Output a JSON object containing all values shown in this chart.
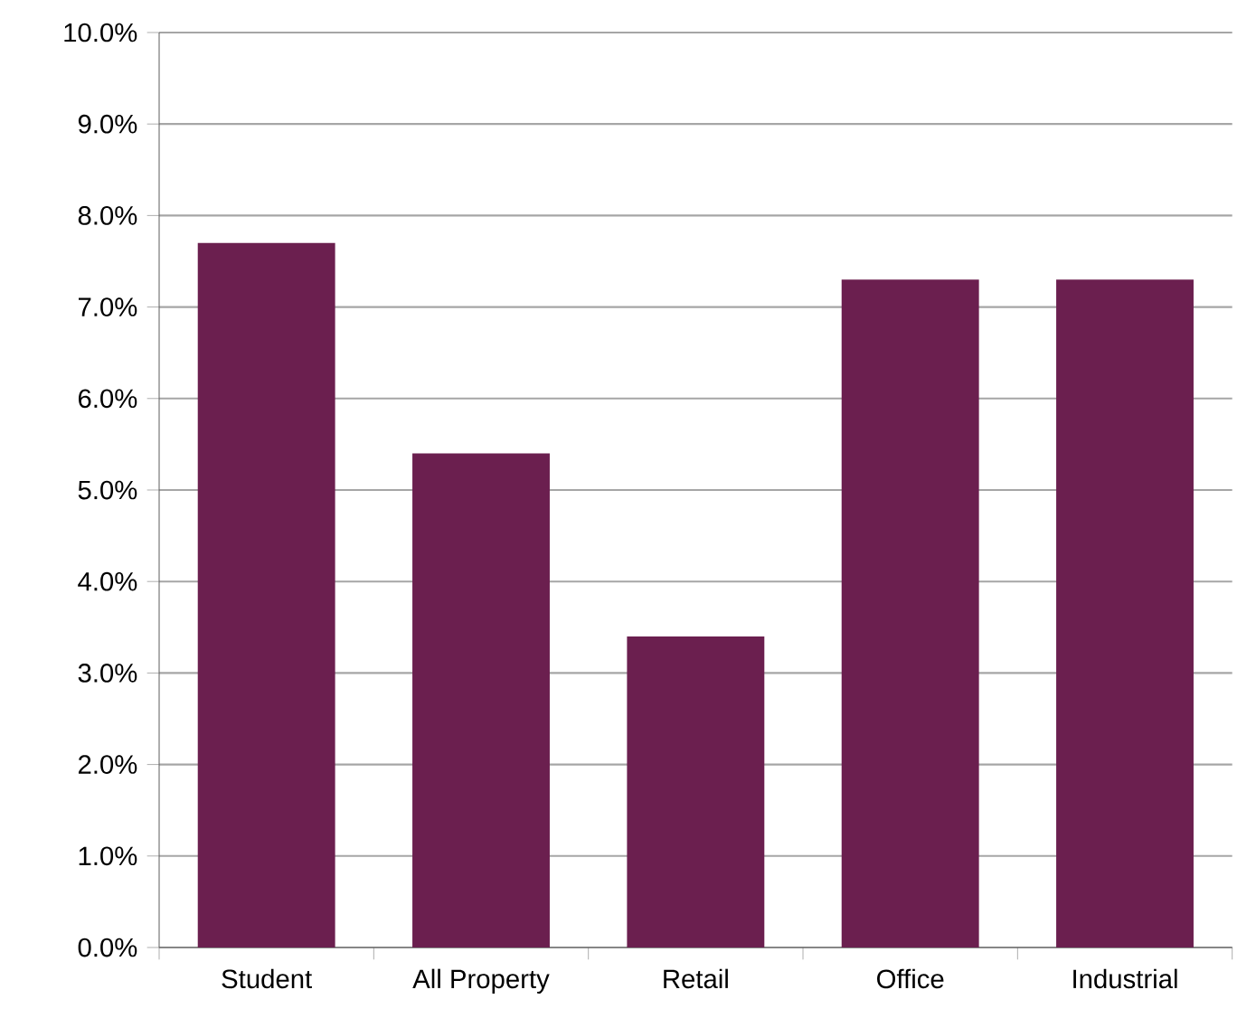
{
  "chart_data": {
    "type": "bar",
    "categories": [
      "Student",
      "All Property",
      "Retail",
      "Office",
      "Industrial"
    ],
    "values": [
      7.7,
      5.4,
      3.4,
      7.3,
      7.3
    ],
    "color": "#6b1f4f",
    "ylim": [
      0,
      10
    ],
    "yticks": [
      {
        "value": 0,
        "label": "0.0%"
      },
      {
        "value": 1,
        "label": "1.0%"
      },
      {
        "value": 2,
        "label": "2.0%"
      },
      {
        "value": 3,
        "label": "3.0%"
      },
      {
        "value": 4,
        "label": "4.0%"
      },
      {
        "value": 5,
        "label": "5.0%"
      },
      {
        "value": 6,
        "label": "6.0%"
      },
      {
        "value": 7,
        "label": "7.0%"
      },
      {
        "value": 8,
        "label": "8.0%"
      },
      {
        "value": 9,
        "label": "9.0%"
      },
      {
        "value": 10,
        "label": "10.0%"
      }
    ],
    "grid": "y"
  }
}
